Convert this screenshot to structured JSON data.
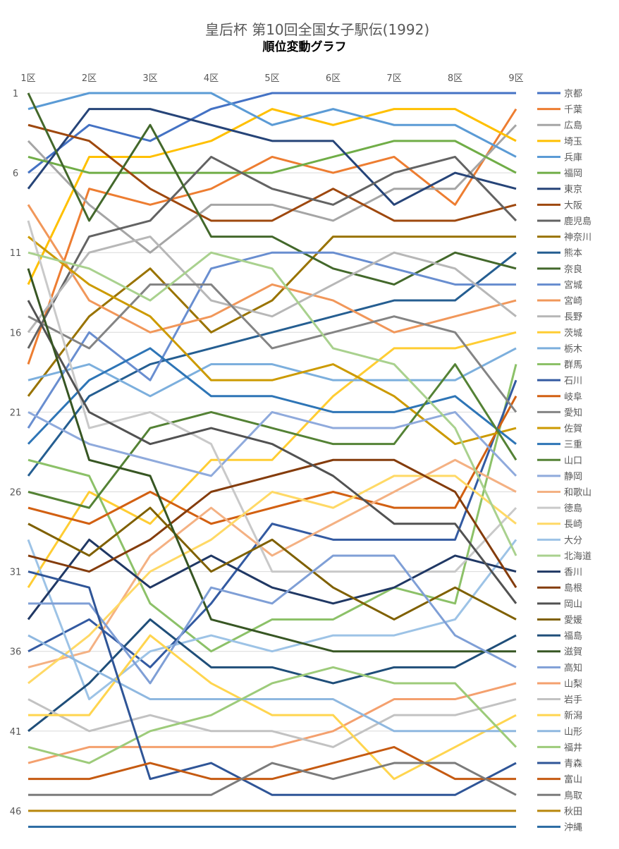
{
  "chart_data": {
    "type": "line",
    "title": "皇后杯 第10回全国女子駅伝(1992)",
    "subtitle": "順位変動グラフ",
    "categories": [
      "1区",
      "2区",
      "3区",
      "4区",
      "5区",
      "6区",
      "7区",
      "8区",
      "9区"
    ],
    "y_ticks": [
      1,
      6,
      11,
      16,
      21,
      26,
      31,
      36,
      41,
      46
    ],
    "ylim": [
      1,
      47
    ],
    "y_reversed": true,
    "grid": true,
    "legend_position": "right",
    "series": [
      {
        "name": "京都",
        "color": "#4472C4",
        "values": [
          6,
          3,
          4,
          2,
          1,
          1,
          1,
          1,
          1
        ]
      },
      {
        "name": "千葉",
        "color": "#ED7D31",
        "values": [
          18,
          7,
          8,
          7,
          5,
          6,
          5,
          8,
          2
        ]
      },
      {
        "name": "広島",
        "color": "#A5A5A5",
        "values": [
          4,
          8,
          11,
          8,
          8,
          9,
          7,
          7,
          3
        ]
      },
      {
        "name": "埼玉",
        "color": "#FFC000",
        "values": [
          13,
          5,
          5,
          4,
          2,
          3,
          2,
          2,
          4
        ]
      },
      {
        "name": "兵庫",
        "color": "#5B9BD5",
        "values": [
          2,
          1,
          1,
          1,
          3,
          2,
          3,
          3,
          5
        ]
      },
      {
        "name": "福岡",
        "color": "#70AD47",
        "values": [
          5,
          6,
          6,
          6,
          6,
          5,
          4,
          4,
          6
        ]
      },
      {
        "name": "東京",
        "color": "#264478",
        "values": [
          7,
          2,
          2,
          3,
          4,
          4,
          8,
          6,
          7
        ]
      },
      {
        "name": "大阪",
        "color": "#9E480E",
        "values": [
          3,
          4,
          7,
          9,
          9,
          7,
          9,
          9,
          8
        ]
      },
      {
        "name": "鹿児島",
        "color": "#636363",
        "values": [
          17,
          10,
          9,
          5,
          7,
          8,
          6,
          5,
          9
        ]
      },
      {
        "name": "神奈川",
        "color": "#997300",
        "values": [
          20,
          15,
          12,
          16,
          14,
          10,
          10,
          10,
          10
        ]
      },
      {
        "name": "熊本",
        "color": "#255E91",
        "values": [
          25,
          20,
          18,
          17,
          16,
          15,
          14,
          14,
          11
        ]
      },
      {
        "name": "奈良",
        "color": "#43682B",
        "values": [
          1,
          9,
          3,
          10,
          10,
          12,
          13,
          11,
          12
        ]
      },
      {
        "name": "宮城",
        "color": "#698ED0",
        "values": [
          22,
          16,
          19,
          12,
          11,
          11,
          12,
          13,
          13
        ]
      },
      {
        "name": "宮崎",
        "color": "#F1975A",
        "values": [
          8,
          14,
          16,
          15,
          13,
          14,
          16,
          15,
          14
        ]
      },
      {
        "name": "長野",
        "color": "#B7B7B7",
        "values": [
          16,
          11,
          10,
          14,
          15,
          13,
          11,
          12,
          15
        ]
      },
      {
        "name": "茨城",
        "color": "#FFCD33",
        "values": [
          32,
          26,
          28,
          24,
          24,
          20,
          17,
          17,
          16
        ]
      },
      {
        "name": "栃木",
        "color": "#7CAFDD",
        "values": [
          19,
          18,
          20,
          18,
          18,
          19,
          19,
          19,
          17
        ]
      },
      {
        "name": "群馬",
        "color": "#8CC168",
        "values": [
          24,
          25,
          33,
          36,
          34,
          34,
          32,
          33,
          18
        ]
      },
      {
        "name": "石川",
        "color": "#335AA1",
        "values": [
          36,
          34,
          37,
          33,
          28,
          29,
          29,
          29,
          19
        ]
      },
      {
        "name": "岐阜",
        "color": "#D26012",
        "values": [
          27,
          28,
          26,
          28,
          27,
          26,
          27,
          27,
          20
        ]
      },
      {
        "name": "愛知",
        "color": "#848484",
        "values": [
          15,
          17,
          13,
          13,
          17,
          16,
          15,
          16,
          21
        ]
      },
      {
        "name": "佐賀",
        "color": "#CC9A00",
        "values": [
          10,
          13,
          15,
          19,
          19,
          18,
          20,
          23,
          22
        ]
      },
      {
        "name": "三重",
        "color": "#2E75B6",
        "values": [
          23,
          19,
          17,
          20,
          20,
          21,
          21,
          20,
          23
        ]
      },
      {
        "name": "山口",
        "color": "#548235",
        "values": [
          26,
          27,
          22,
          21,
          22,
          23,
          23,
          18,
          24
        ]
      },
      {
        "name": "静岡",
        "color": "#8FAADC",
        "values": [
          21,
          23,
          24,
          25,
          21,
          22,
          22,
          21,
          25
        ]
      },
      {
        "name": "和歌山",
        "color": "#F4B183",
        "values": [
          37,
          36,
          30,
          27,
          30,
          28,
          26,
          24,
          26
        ]
      },
      {
        "name": "徳島",
        "color": "#C9C9C9",
        "values": [
          9,
          22,
          21,
          23,
          31,
          31,
          31,
          31,
          27
        ]
      },
      {
        "name": "長崎",
        "color": "#FFD966",
        "values": [
          38,
          35,
          31,
          29,
          26,
          27,
          25,
          25,
          28
        ]
      },
      {
        "name": "大分",
        "color": "#9DC3E6",
        "values": [
          29,
          39,
          36,
          35,
          36,
          35,
          35,
          34,
          29
        ]
      },
      {
        "name": "北海道",
        "color": "#A9D18E",
        "values": [
          11,
          12,
          14,
          11,
          12,
          17,
          18,
          22,
          30
        ]
      },
      {
        "name": "香川",
        "color": "#203864",
        "values": [
          34,
          29,
          32,
          30,
          32,
          33,
          32,
          30,
          31
        ]
      },
      {
        "name": "島根",
        "color": "#843C0C",
        "values": [
          30,
          31,
          29,
          26,
          25,
          24,
          24,
          26,
          32
        ]
      },
      {
        "name": "岡山",
        "color": "#525252",
        "values": [
          14,
          21,
          23,
          22,
          23,
          25,
          28,
          28,
          33
        ]
      },
      {
        "name": "愛媛",
        "color": "#7F6000",
        "values": [
          28,
          30,
          27,
          31,
          29,
          32,
          34,
          32,
          34
        ]
      },
      {
        "name": "福島",
        "color": "#1F4E79",
        "values": [
          41,
          38,
          34,
          37,
          37,
          38,
          37,
          37,
          35
        ]
      },
      {
        "name": "滋賀",
        "color": "#375623",
        "values": [
          12,
          24,
          25,
          34,
          35,
          36,
          36,
          36,
          36
        ]
      },
      {
        "name": "高知",
        "color": "#7F9FD6",
        "values": [
          33,
          33,
          38,
          32,
          33,
          30,
          30,
          35,
          37
        ]
      },
      {
        "name": "山梨",
        "color": "#F4A06E",
        "values": [
          43,
          42,
          42,
          42,
          42,
          41,
          39,
          39,
          38
        ]
      },
      {
        "name": "岩手",
        "color": "#C2C2C2",
        "values": [
          39,
          41,
          40,
          41,
          41,
          42,
          40,
          40,
          39
        ]
      },
      {
        "name": "新潟",
        "color": "#FFD54F",
        "values": [
          40,
          40,
          35,
          38,
          40,
          40,
          44,
          42,
          40
        ]
      },
      {
        "name": "山形",
        "color": "#8FB8E0",
        "values": [
          35,
          37,
          39,
          39,
          39,
          39,
          41,
          41,
          41
        ]
      },
      {
        "name": "福井",
        "color": "#9DCB7A",
        "values": [
          42,
          43,
          41,
          40,
          38,
          37,
          38,
          38,
          42
        ]
      },
      {
        "name": "青森",
        "color": "#2F5597",
        "values": [
          31,
          32,
          44,
          43,
          45,
          45,
          45,
          45,
          43
        ]
      },
      {
        "name": "富山",
        "color": "#C55A11",
        "values": [
          44,
          44,
          43,
          44,
          44,
          43,
          42,
          44,
          44
        ]
      },
      {
        "name": "鳥取",
        "color": "#7B7B7B",
        "values": [
          45,
          45,
          45,
          45,
          43,
          44,
          43,
          43,
          45
        ]
      },
      {
        "name": "秋田",
        "color": "#B8860B",
        "values": [
          46,
          46,
          46,
          46,
          46,
          46,
          46,
          46,
          46
        ]
      },
      {
        "name": "沖縄",
        "color": "#2E6DA4",
        "values": [
          47,
          47,
          47,
          47,
          47,
          47,
          47,
          47,
          47
        ]
      }
    ]
  }
}
